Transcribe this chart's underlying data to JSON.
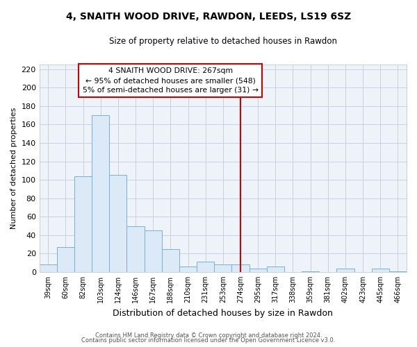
{
  "title": "4, SNAITH WOOD DRIVE, RAWDON, LEEDS, LS19 6SZ",
  "subtitle": "Size of property relative to detached houses in Rawdon",
  "xlabel": "Distribution of detached houses by size in Rawdon",
  "ylabel": "Number of detached properties",
  "bar_labels": [
    "39sqm",
    "60sqm",
    "82sqm",
    "103sqm",
    "124sqm",
    "146sqm",
    "167sqm",
    "188sqm",
    "210sqm",
    "231sqm",
    "253sqm",
    "274sqm",
    "295sqm",
    "317sqm",
    "338sqm",
    "359sqm",
    "381sqm",
    "402sqm",
    "423sqm",
    "445sqm",
    "466sqm"
  ],
  "bar_values": [
    8,
    27,
    104,
    170,
    105,
    50,
    45,
    25,
    6,
    11,
    8,
    8,
    4,
    6,
    0,
    1,
    0,
    4,
    0,
    4,
    1
  ],
  "bar_color": "#dce9f7",
  "bar_edge_color": "#7aafd4",
  "vline_x_index": 11,
  "vline_color": "#cc0000",
  "annotation_title": "4 SNAITH WOOD DRIVE: 267sqm",
  "annotation_line1": "← 95% of detached houses are smaller (548)",
  "annotation_line2": "5% of semi-detached houses are larger (31) →",
  "ylim": [
    0,
    225
  ],
  "yticks": [
    0,
    20,
    40,
    60,
    80,
    100,
    120,
    140,
    160,
    180,
    200,
    220
  ],
  "footer_line1": "Contains HM Land Registry data © Crown copyright and database right 2024.",
  "footer_line2": "Contains public sector information licensed under the Open Government Licence v3.0.",
  "background_color": "#ffffff",
  "plot_bg_color": "#eef3fa",
  "grid_color": "#c8d0d8"
}
